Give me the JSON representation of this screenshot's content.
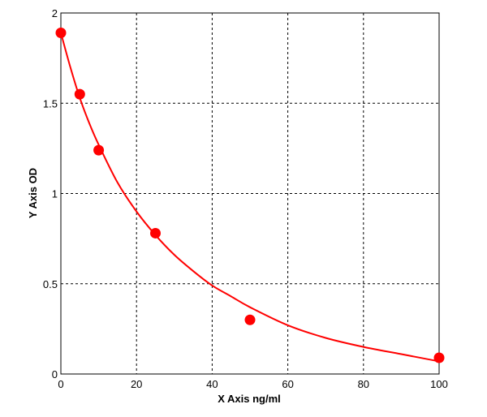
{
  "chart_data": {
    "type": "scatter",
    "xlabel": "X Axis ng/ml",
    "ylabel": "Y Axis OD",
    "xlim": [
      0,
      100
    ],
    "ylim": [
      0,
      2
    ],
    "x_ticks": [
      "0",
      "20",
      "40",
      "60",
      "80",
      "100"
    ],
    "y_ticks": [
      "0",
      "0.5",
      "1",
      "1.5",
      "2"
    ],
    "grid": true,
    "points": [
      {
        "x": 0,
        "y": 1.89
      },
      {
        "x": 5,
        "y": 1.55
      },
      {
        "x": 10,
        "y": 1.24
      },
      {
        "x": 25,
        "y": 0.78
      },
      {
        "x": 50,
        "y": 0.3
      },
      {
        "x": 100,
        "y": 0.09
      }
    ],
    "fit_curve": [
      [
        0,
        1.89
      ],
      [
        2.5,
        1.7
      ],
      [
        5,
        1.53
      ],
      [
        7.5,
        1.39
      ],
      [
        10,
        1.27
      ],
      [
        15,
        1.06
      ],
      [
        20,
        0.9
      ],
      [
        25,
        0.77
      ],
      [
        30,
        0.66
      ],
      [
        35,
        0.57
      ],
      [
        40,
        0.49
      ],
      [
        45,
        0.43
      ],
      [
        50,
        0.37
      ],
      [
        60,
        0.27
      ],
      [
        70,
        0.2
      ],
      [
        80,
        0.15
      ],
      [
        90,
        0.11
      ],
      [
        100,
        0.07
      ]
    ],
    "colors": {
      "points": "#ff0000",
      "curve": "#ff0000",
      "grid": "#000000"
    }
  }
}
